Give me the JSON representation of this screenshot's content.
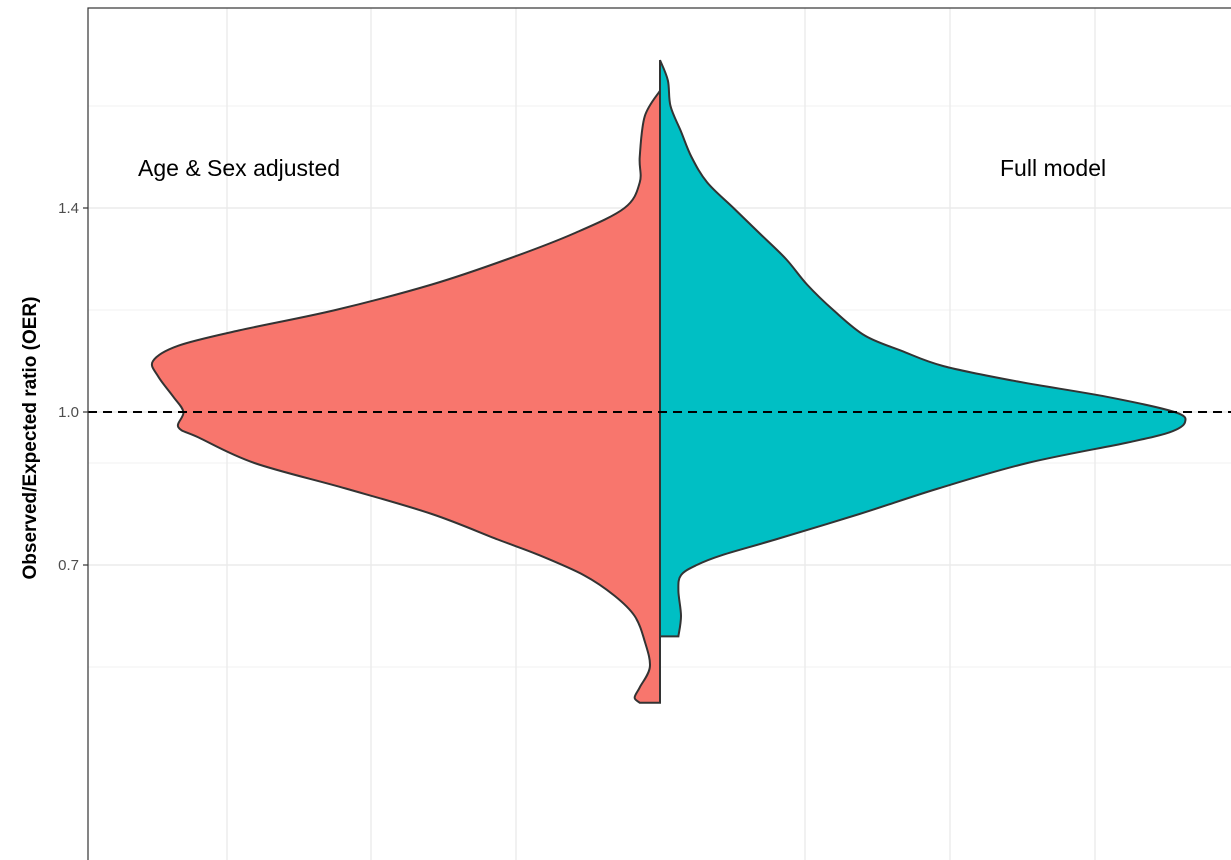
{
  "chart_data": {
    "type": "split-violin",
    "title": "",
    "ylabel": "Observed/Expected ratio (OER)",
    "xlabel": "",
    "ylim": [
      0.42,
      1.69
    ],
    "y_ticks": [
      0.7,
      1.0,
      1.4
    ],
    "y_tick_labels": [
      "0.7",
      "1.0",
      "1.4"
    ],
    "reference_line": {
      "y": 1.0,
      "style": "dashed",
      "color": "#000000"
    },
    "grid": true,
    "series": [
      {
        "name": "Age & Sex adjusted",
        "side": "left",
        "color": "#F8766D",
        "y_min": 0.43,
        "y_max": 1.63,
        "density": [
          [
            0.43,
            0.04
          ],
          [
            0.44,
            0.05
          ],
          [
            0.46,
            0.04
          ],
          [
            0.5,
            0.02
          ],
          [
            0.55,
            0.03
          ],
          [
            0.6,
            0.05
          ],
          [
            0.64,
            0.09
          ],
          [
            0.68,
            0.15
          ],
          [
            0.72,
            0.24
          ],
          [
            0.75,
            0.32
          ],
          [
            0.8,
            0.45
          ],
          [
            0.85,
            0.62
          ],
          [
            0.9,
            0.8
          ],
          [
            0.95,
            0.91
          ],
          [
            0.97,
            0.95
          ],
          [
            1.0,
            0.94
          ],
          [
            1.03,
            0.96
          ],
          [
            1.07,
            0.99
          ],
          [
            1.1,
            1.0
          ],
          [
            1.13,
            0.95
          ],
          [
            1.16,
            0.83
          ],
          [
            1.2,
            0.64
          ],
          [
            1.25,
            0.45
          ],
          [
            1.3,
            0.3
          ],
          [
            1.35,
            0.17
          ],
          [
            1.4,
            0.07
          ],
          [
            1.45,
            0.04
          ],
          [
            1.5,
            0.04
          ],
          [
            1.58,
            0.03
          ],
          [
            1.63,
            0.0
          ]
        ]
      },
      {
        "name": "Full model",
        "side": "right",
        "color": "#00BFC4",
        "y_min": 0.56,
        "y_max": 1.69,
        "density": [
          [
            0.56,
            0.035
          ],
          [
            0.6,
            0.04
          ],
          [
            0.65,
            0.035
          ],
          [
            0.68,
            0.04
          ],
          [
            0.7,
            0.07
          ],
          [
            0.72,
            0.12
          ],
          [
            0.75,
            0.22
          ],
          [
            0.8,
            0.38
          ],
          [
            0.85,
            0.53
          ],
          [
            0.9,
            0.7
          ],
          [
            0.94,
            0.89
          ],
          [
            0.96,
            0.97
          ],
          [
            0.98,
            1.0
          ],
          [
            1.0,
            0.98
          ],
          [
            1.03,
            0.85
          ],
          [
            1.06,
            0.68
          ],
          [
            1.09,
            0.54
          ],
          [
            1.12,
            0.46
          ],
          [
            1.15,
            0.39
          ],
          [
            1.2,
            0.33
          ],
          [
            1.25,
            0.28
          ],
          [
            1.3,
            0.24
          ],
          [
            1.35,
            0.19
          ],
          [
            1.4,
            0.14
          ],
          [
            1.45,
            0.09
          ],
          [
            1.5,
            0.06
          ],
          [
            1.55,
            0.04
          ],
          [
            1.6,
            0.02
          ],
          [
            1.65,
            0.015
          ],
          [
            1.69,
            0.0
          ]
        ]
      }
    ],
    "annotations": [
      {
        "text": "Age & Sex adjusted",
        "position": "upper-left"
      },
      {
        "text": "Full model",
        "position": "upper-right"
      }
    ]
  }
}
